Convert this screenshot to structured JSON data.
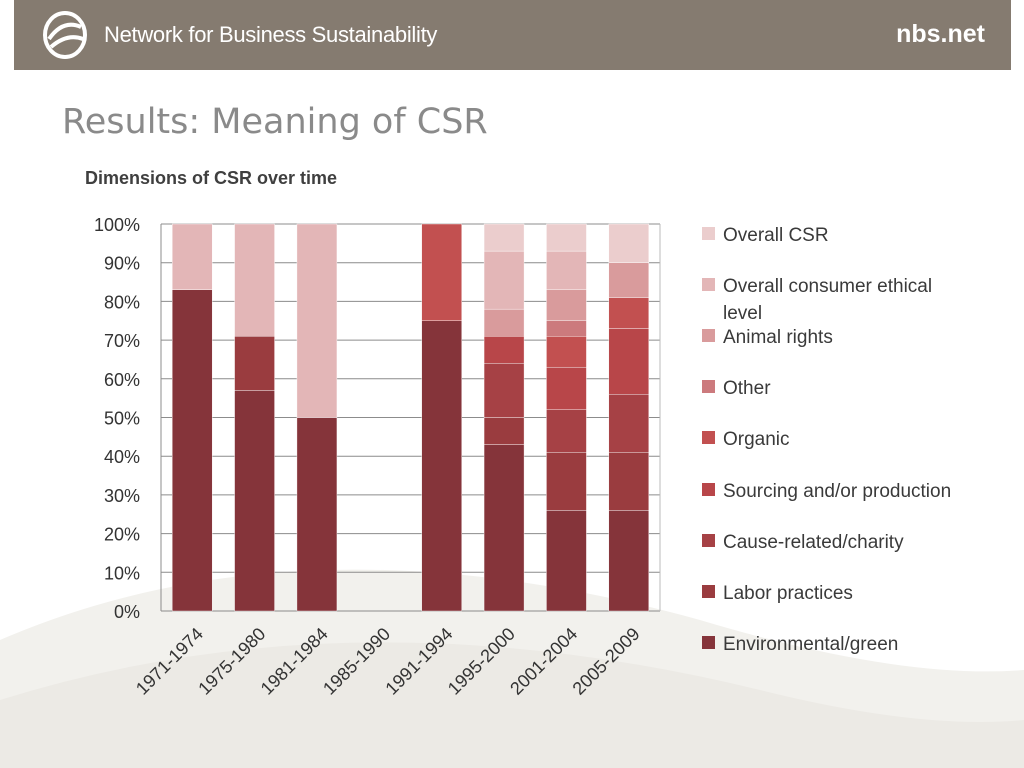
{
  "header": {
    "org_name": "Network for Business Sustainability",
    "site": "nbs.net"
  },
  "page": {
    "title": "Results: Meaning of CSR"
  },
  "colors": {
    "header_bg": "#857b70",
    "Environmental/green": "#85343a",
    "Labor practices": "#9a3c3f",
    "Cause-related/charity": "#a64145",
    "Sourcing and/or production": "#b84649",
    "Organic": "#c25050",
    "Other": "#cc7a7d",
    "Animal rights": "#d99b9c",
    "Overall consumer ethical level": "#e3b6b7",
    "Overall CSR": "#ebcdcd"
  },
  "chart_data": {
    "type": "bar",
    "stacked": true,
    "title": "Dimensions of CSR over time",
    "xlabel": "",
    "ylabel": "",
    "ylim": [
      0,
      100
    ],
    "y_ticks": [
      "0%",
      "10%",
      "20%",
      "30%",
      "40%",
      "50%",
      "60%",
      "70%",
      "80%",
      "90%",
      "100%"
    ],
    "categories": [
      "1971-1974",
      "1975-1980",
      "1981-1984",
      "1985-1990",
      "1991-1994",
      "1995-2000",
      "2001-2004",
      "2005-2009"
    ],
    "legend_position": "right",
    "series": [
      {
        "name": "Environmental/green",
        "values": [
          83,
          57,
          50,
          0,
          75,
          43,
          26,
          26
        ]
      },
      {
        "name": "Labor practices",
        "values": [
          0,
          14,
          0,
          0,
          0,
          7,
          15,
          15
        ]
      },
      {
        "name": "Cause-related/charity",
        "values": [
          0,
          0,
          0,
          0,
          0,
          14,
          11,
          15
        ]
      },
      {
        "name": "Sourcing and/or production",
        "values": [
          0,
          0,
          0,
          0,
          0,
          7,
          11,
          17
        ]
      },
      {
        "name": "Organic",
        "values": [
          0,
          0,
          0,
          0,
          25,
          0,
          8,
          8
        ]
      },
      {
        "name": "Other",
        "values": [
          0,
          0,
          0,
          0,
          0,
          0,
          4,
          0
        ]
      },
      {
        "name": "Animal rights",
        "values": [
          0,
          0,
          0,
          0,
          0,
          7,
          8,
          9
        ]
      },
      {
        "name": "Overall consumer ethical level",
        "values": [
          17,
          29,
          50,
          0,
          0,
          15,
          10,
          0
        ]
      },
      {
        "name": "Overall CSR",
        "values": [
          0,
          0,
          0,
          0,
          0,
          7,
          7,
          10
        ]
      }
    ],
    "legend": [
      "Overall CSR",
      "Overall consumer ethical level",
      "Animal rights",
      "Other",
      "Organic",
      "Sourcing and/or production",
      "Cause-related/charity",
      "Labor practices",
      "Environmental/green"
    ]
  }
}
